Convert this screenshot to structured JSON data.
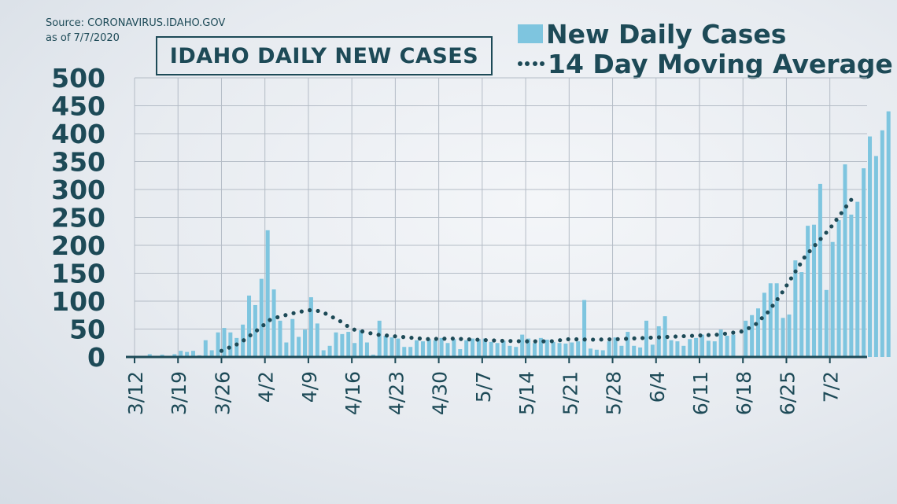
{
  "source": {
    "line1": "Source: CORONAVIRUS.IDAHO.GOV",
    "line2": "as of 7/7/2020"
  },
  "chart_data": {
    "type": "bar",
    "title": "IDAHO DAILY NEW CASES",
    "xlabel": "",
    "ylabel": "",
    "ylim": [
      0,
      500
    ],
    "yticks": [
      0,
      50,
      100,
      150,
      200,
      250,
      300,
      350,
      400,
      450,
      500
    ],
    "grid": true,
    "legend_placement": "top-right",
    "x_start": "3/12",
    "xtick_labels": [
      "3/12",
      "3/19",
      "3/26",
      "4/2",
      "4/9",
      "4/16",
      "4/23",
      "4/30",
      "5/7",
      "5/14",
      "5/21",
      "5/28",
      "6/4",
      "6/11",
      "6/18",
      "6/25",
      "7/2"
    ],
    "series": [
      {
        "name": "New Daily Cases",
        "kind": "bar",
        "color": "#7ec5df",
        "values": [
          0,
          2,
          5,
          0,
          4,
          1,
          5,
          11,
          9,
          11,
          3,
          30,
          12,
          44,
          52,
          44,
          34,
          58,
          110,
          93,
          140,
          227,
          121,
          65,
          26,
          68,
          36,
          49,
          107,
          60,
          12,
          20,
          44,
          41,
          45,
          25,
          48,
          26,
          4,
          65,
          38,
          35,
          33,
          18,
          18,
          30,
          28,
          32,
          30,
          34,
          25,
          32,
          14,
          30,
          33,
          32,
          33,
          27,
          25,
          29,
          20,
          18,
          40,
          33,
          25,
          34,
          31,
          27,
          25,
          24,
          26,
          28,
          102,
          15,
          13,
          12,
          28,
          35,
          20,
          45,
          20,
          17,
          65,
          22,
          55,
          73,
          30,
          28,
          20,
          32,
          34,
          40,
          29,
          28,
          49,
          38,
          40,
          0,
          65,
          75,
          87,
          115,
          132,
          132,
          70,
          76,
          173,
          152,
          235,
          237,
          310,
          120,
          206,
          245,
          345,
          255,
          278,
          338,
          395,
          360,
          406,
          440
        ]
      },
      {
        "name": "14 Day Moving Average",
        "kind": "dotted-line",
        "color": "#1d4a57",
        "points": [
          [
            "3/26",
            11
          ],
          [
            "3/29",
            25
          ],
          [
            "4/1",
            50
          ],
          [
            "4/3",
            68
          ],
          [
            "4/6",
            77
          ],
          [
            "4/9",
            84
          ],
          [
            "4/11",
            82
          ],
          [
            "4/14",
            65
          ],
          [
            "4/16",
            50
          ],
          [
            "4/20",
            40
          ],
          [
            "4/24",
            36
          ],
          [
            "4/28",
            32
          ],
          [
            "5/2",
            33
          ],
          [
            "5/6",
            31
          ],
          [
            "5/10",
            29
          ],
          [
            "5/14",
            28
          ],
          [
            "5/18",
            28
          ],
          [
            "5/21",
            32
          ],
          [
            "5/25",
            31
          ],
          [
            "5/29",
            32
          ],
          [
            "6/2",
            34
          ],
          [
            "6/6",
            36
          ],
          [
            "6/10",
            38
          ],
          [
            "6/14",
            40
          ],
          [
            "6/18",
            46
          ],
          [
            "6/20",
            58
          ],
          [
            "6/22",
            80
          ],
          [
            "6/24",
            110
          ],
          [
            "6/26",
            145
          ],
          [
            "6/28",
            180
          ],
          [
            "6/30",
            205
          ],
          [
            "7/2",
            230
          ],
          [
            "7/4",
            260
          ],
          [
            "7/6",
            290
          ]
        ]
      }
    ]
  }
}
